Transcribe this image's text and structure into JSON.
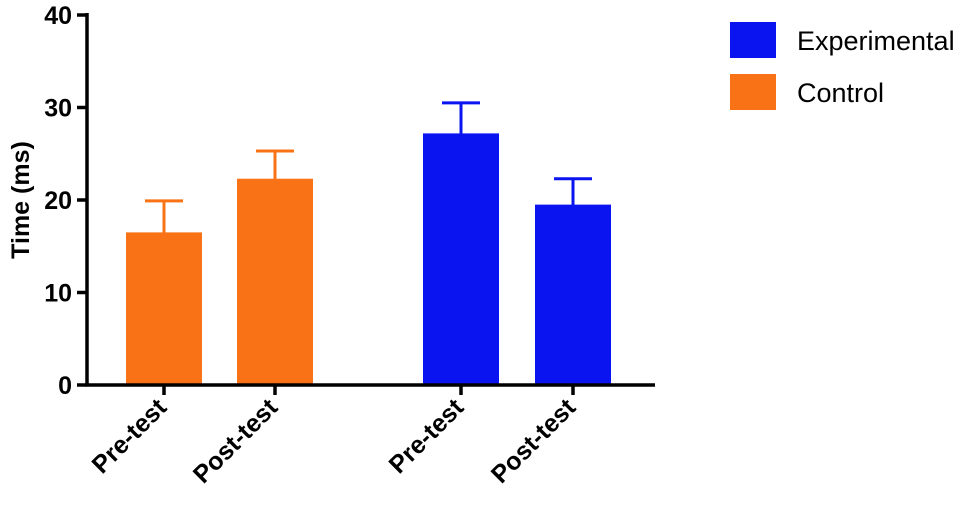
{
  "chart_data": {
    "type": "bar",
    "title": "",
    "xlabel": "",
    "ylabel": "Time  (ms)",
    "ylim": [
      0,
      40
    ],
    "yticks": [
      0,
      10,
      20,
      30,
      40
    ],
    "grid": false,
    "legend_position": "top-right",
    "series": [
      {
        "name": "Control",
        "color": "#F97316",
        "categories": [
          "Pre-test",
          "Post-test"
        ],
        "values": [
          16.5,
          22.3
        ],
        "error": [
          3.4,
          3.0
        ]
      },
      {
        "name": "Experimental",
        "color": "#0A14F0",
        "categories": [
          "Pre-test",
          "Post-test"
        ],
        "values": [
          27.2,
          19.5
        ],
        "error": [
          3.3,
          2.8
        ]
      }
    ],
    "legend": [
      {
        "name": "Experimental",
        "color": "#0A14F0"
      },
      {
        "name": "Control",
        "color": "#F97316"
      }
    ]
  }
}
